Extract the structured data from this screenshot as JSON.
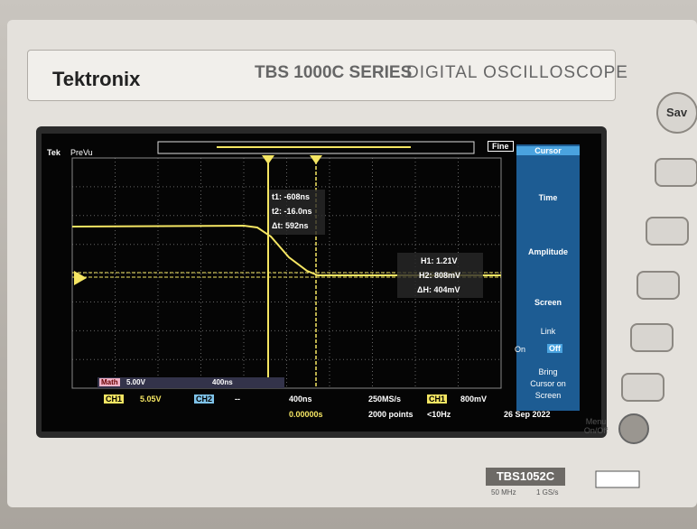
{
  "brand": "Tektronix",
  "series": "TBS 1000C SERIES",
  "product": "DIGITAL OSCILLOSCOPE",
  "model": "TBS1052C",
  "specs": [
    "50 MHz",
    "1 GS/s"
  ],
  "buttons": {
    "save": "Sav",
    "menu": "Menu On/Off"
  },
  "screen": {
    "logo": "Tek",
    "mode": "PreVu",
    "zoom": "Fine",
    "readouts": {
      "t1": "t1: -608ns",
      "t2": "t2: -16.0ns",
      "dt": "Δt: 592ns",
      "h1": "H1: 1.21V",
      "h2": "H2: 808mV",
      "dh": "ΔH: 404mV"
    },
    "menu": {
      "title": "Cursor",
      "items": [
        "Time",
        "Amplitude",
        "Screen"
      ],
      "link": "Link",
      "on": "On",
      "off": "Off",
      "bring": "Bring Cursor on Screen"
    },
    "math": {
      "label": "Math",
      "scale": "5.00V",
      "time": "400ns"
    },
    "status": {
      "ch1": "CH1",
      "ch1_scale": "5.05V",
      "ch2": "CH2",
      "ch2_scale": "--",
      "timebase": "400ns",
      "rate": "250MS/s",
      "trig_ch": "CH1",
      "trig_level": "800mV",
      "position": "0.00000s",
      "points": "2000 points",
      "freq": "<10Hz",
      "date": "26 Sep 2022"
    }
  }
}
